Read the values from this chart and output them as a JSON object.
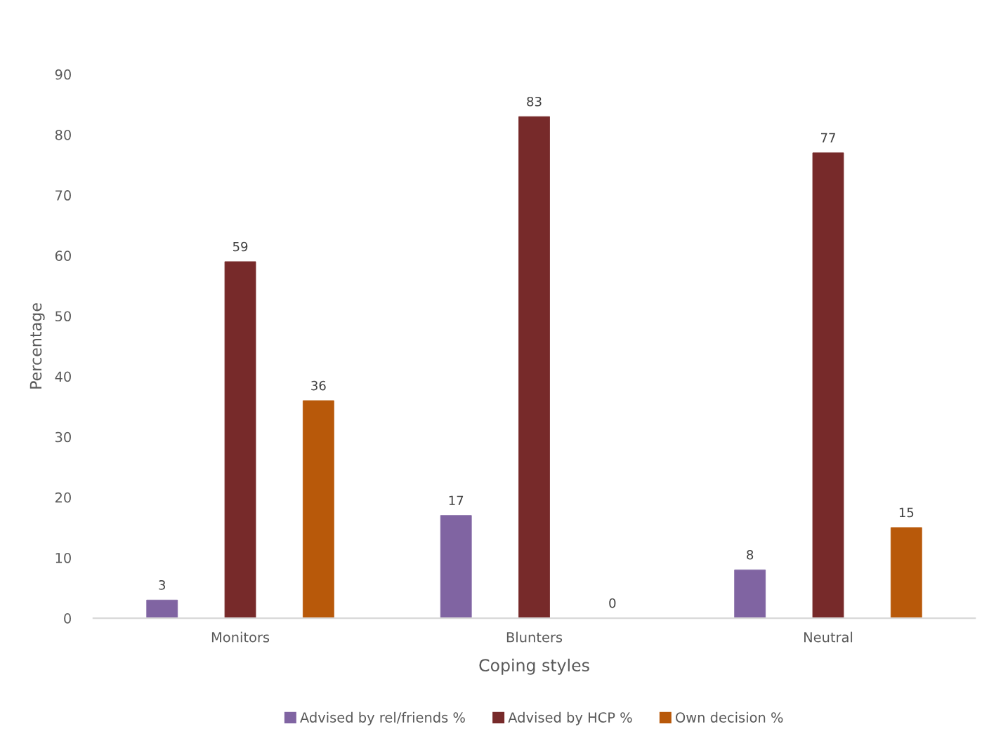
{
  "chart_data": {
    "type": "bar",
    "xlabel": "Coping styles",
    "ylabel": "Percentage",
    "categories": [
      "Monitors",
      "Blunters",
      "Neutral"
    ],
    "series": [
      {
        "name": "Advised by rel/friends %",
        "color": "#8064a2",
        "values": [
          3,
          17,
          8
        ]
      },
      {
        "name": "Advised by HCP %",
        "color": "#772a2a",
        "values": [
          59,
          83,
          77
        ]
      },
      {
        "name": "Own decision %",
        "color": "#b8590a",
        "values": [
          36,
          0,
          15
        ]
      }
    ],
    "ylim": [
      0,
      90
    ],
    "yticks": [
      0,
      10,
      20,
      30,
      40,
      50,
      60,
      70,
      80,
      90
    ],
    "grid": false,
    "legend": "bottom",
    "data_labels": true
  }
}
